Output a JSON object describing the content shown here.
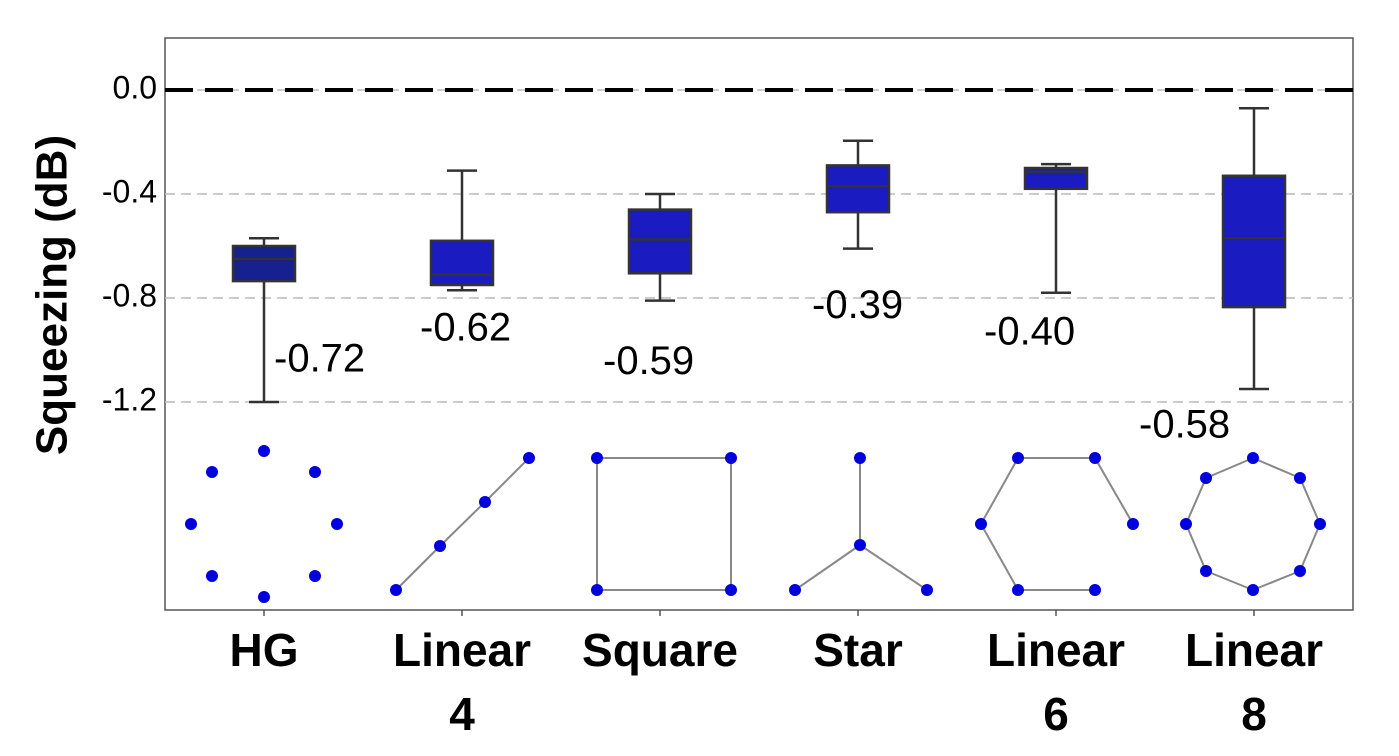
{
  "chart_data": {
    "type": "box",
    "y_label": "Squeezing (dB)",
    "categories": [
      "HG",
      "Linear 4",
      "Square",
      "Star",
      "Linear 6",
      "Linear 8"
    ],
    "min": [
      -1.2,
      -0.77,
      -0.81,
      -0.61,
      -0.78,
      -1.15
    ],
    "q1": [
      -0.735,
      -0.75,
      -0.705,
      -0.47,
      -0.38,
      -0.835
    ],
    "median": [
      -0.65,
      -0.71,
      -0.575,
      -0.37,
      -0.315,
      -0.57
    ],
    "q3": [
      -0.6,
      -0.58,
      -0.46,
      -0.29,
      -0.3,
      -0.33
    ],
    "max": [
      -0.57,
      -0.31,
      -0.4,
      -0.195,
      -0.285,
      -0.07
    ],
    "colors": [
      "#16208f",
      "#1b1bc2",
      "#1b1bc2",
      "#1b1bc2",
      "#1b1bc2",
      "#1b1bc2"
    ],
    "annotations": [
      "-0.72",
      "-0.62",
      "-0.59",
      "-0.39",
      "-0.40",
      "-0.58"
    ],
    "reference_line": 0,
    "ylim": [
      -2.0,
      0.2
    ],
    "yticks": [
      {
        "value": 0,
        "label": "0.0"
      },
      -0.4,
      -0.8,
      -1.2
    ],
    "grid": true
  }
}
